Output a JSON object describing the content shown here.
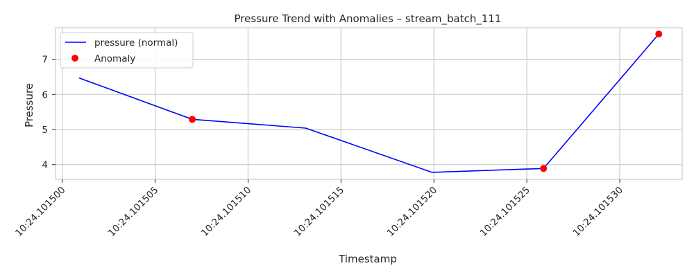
{
  "chart_data": {
    "type": "line",
    "title": "Pressure Trend with Anomalies – stream_batch_111",
    "xlabel": "Timestamp",
    "ylabel": "Pressure",
    "x_tick_labels": [
      "10:24.101500",
      "10:24.101505",
      "10:24.101510",
      "10:24.101515",
      "10:24.101520",
      "10:24.101525",
      "10:24.101530"
    ],
    "x_tick_values": [
      101500,
      101505,
      101510,
      101515,
      101520,
      101525,
      101530
    ],
    "y_ticks": [
      4,
      5,
      6,
      7
    ],
    "xlim": [
      101499.64,
      101533.36
    ],
    "ylim": [
      3.58,
      7.9
    ],
    "grid": true,
    "legend_position": "top-left",
    "series": [
      {
        "name": "pressure (normal)",
        "type": "line",
        "color": "#0000ff",
        "x": [
          101500.9,
          101507.0,
          101513.1,
          101519.9,
          101525.9,
          101532.1
        ],
        "y": [
          6.47,
          5.29,
          5.04,
          3.78,
          3.89,
          7.72
        ]
      },
      {
        "name": "Anomaly",
        "type": "scatter",
        "color": "#ff0000",
        "x": [
          101507.0,
          101525.9,
          101532.1
        ],
        "y": [
          5.29,
          3.89,
          7.72
        ]
      }
    ]
  }
}
